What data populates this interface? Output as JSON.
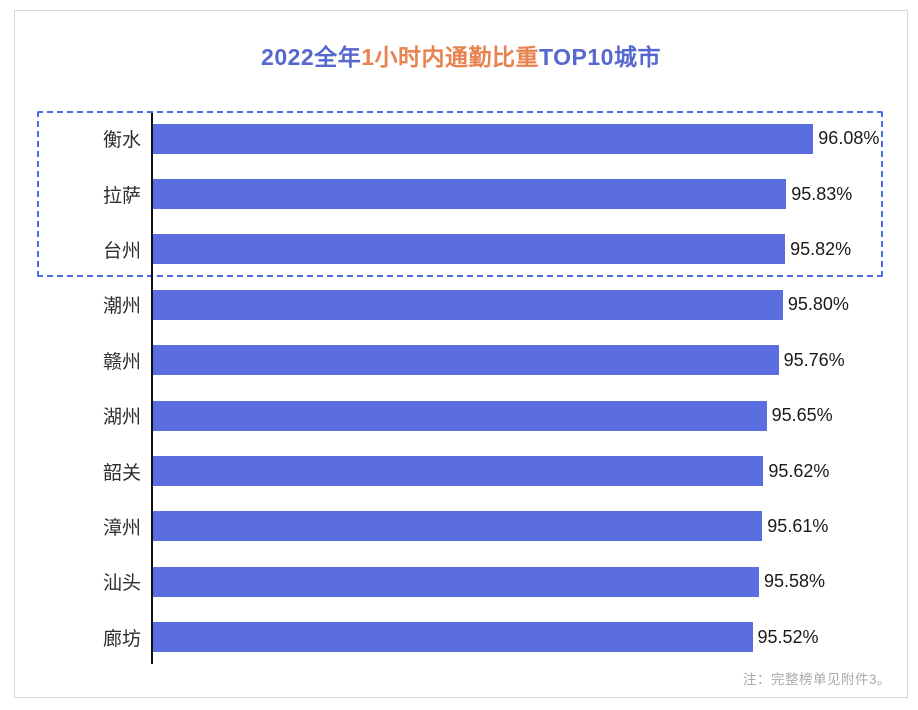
{
  "colors": {
    "bar": "#5A6EDF",
    "dashed_box": "#4A6CE4",
    "title_blue": "#5667CE",
    "title_orange": "#E8824E",
    "axis": "#111111",
    "label_text": "#2E2E2E",
    "value_text": "#1A1A1A",
    "note_text": "#AAAAAA",
    "frame_border": "#D8D8D8"
  },
  "chart_data": {
    "type": "bar",
    "orientation": "horizontal",
    "title": "2022全年1小时内通勤比重TOP10城市",
    "title_segments": [
      {
        "text": "2022全年",
        "color_role": "title_blue"
      },
      {
        "text": "1小时内通勤比重",
        "color_role": "title_orange"
      },
      {
        "text": "TOP10城市",
        "color_role": "title_blue"
      }
    ],
    "categories": [
      "衡水",
      "拉萨",
      "台州",
      "潮州",
      "赣州",
      "湖州",
      "韶关",
      "漳州",
      "汕头",
      "廊坊"
    ],
    "values": [
      96.08,
      95.83,
      95.82,
      95.8,
      95.76,
      95.65,
      95.62,
      95.61,
      95.58,
      95.52
    ],
    "value_labels": [
      "96.08%",
      "95.83%",
      "95.82%",
      "95.80%",
      "95.76%",
      "95.65%",
      "95.62%",
      "95.61%",
      "95.58%",
      "95.52%"
    ],
    "xlim": [
      90,
      96.74
    ],
    "highlighted_top_n": 3,
    "grid": false,
    "legend": false,
    "note": "注：完整榜单见附件3。"
  }
}
